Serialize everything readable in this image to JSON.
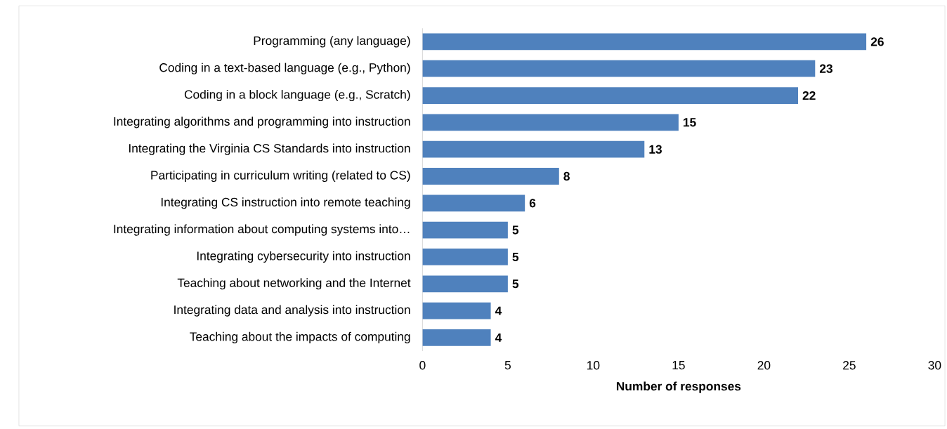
{
  "chart_data": {
    "type": "bar",
    "orientation": "horizontal",
    "xlabel": "Number of responses",
    "categories": [
      "Programming (any language)",
      "Coding in a text-based language (e.g., Python)",
      "Coding in a block language (e.g., Scratch)",
      "Integrating algorithms and programming into instruction",
      "Integrating the Virginia CS Standards into instruction",
      "Participating in curriculum writing (related to CS)",
      "Integrating CS instruction into remote teaching",
      "Integrating information about computing systems into…",
      "Integrating cybersecurity into instruction",
      "Teaching about networking and the Internet",
      "Integrating data and analysis into instruction",
      "Teaching about the impacts of computing"
    ],
    "values": [
      26,
      23,
      22,
      15,
      13,
      8,
      6,
      5,
      5,
      5,
      4,
      4
    ],
    "color": "#4f81bd",
    "data_labels": true,
    "xlim": [
      0,
      30
    ],
    "xticks": [
      0,
      5,
      10,
      15,
      20,
      25,
      30
    ]
  }
}
